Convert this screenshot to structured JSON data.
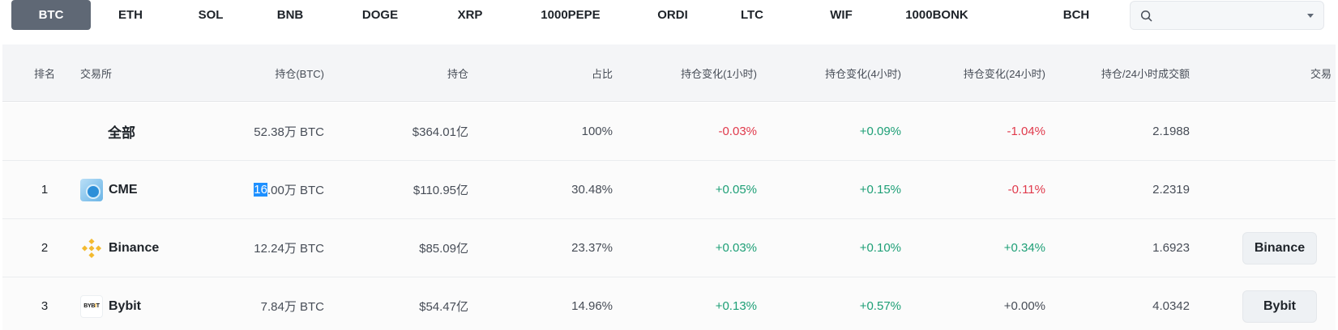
{
  "tabs": [
    {
      "label": "BTC",
      "active": true
    },
    {
      "label": "ETH"
    },
    {
      "label": "SOL"
    },
    {
      "label": "BNB"
    },
    {
      "label": "DOGE"
    },
    {
      "label": "XRP"
    },
    {
      "label": "1000PEPE"
    },
    {
      "label": "ORDI"
    },
    {
      "label": "LTC"
    },
    {
      "label": "WIF"
    },
    {
      "label": "1000BONK"
    },
    {
      "label": "BCH"
    }
  ],
  "search": {
    "value": "",
    "placeholder": ""
  },
  "table": {
    "headers": {
      "rank": "排名",
      "exchange": "交易所",
      "holding": "持仓(BTC)",
      "value": "持仓",
      "share": "占比",
      "change_1h": "持仓变化(1小时)",
      "change_4h": "持仓变化(4小时)",
      "change_24h": "持仓变化(24小时)",
      "ratio": "持仓/24小时成交额",
      "trade": "交易"
    },
    "total": {
      "name": "全部",
      "holding": "52.38万 BTC",
      "value": "$364.01亿",
      "share": "100%",
      "change_1h": "-0.03%",
      "change_4h": "+0.09%",
      "change_24h": "-1.04%",
      "ratio": "2.1988"
    },
    "rows": [
      {
        "rank": "1",
        "name": "CME",
        "holding_sel": "16",
        "holding_rest": ".00万 BTC",
        "value": "$110.95亿",
        "share": "30.48%",
        "change_1h": "+0.05%",
        "change_4h": "+0.15%",
        "change_24h": "-0.11%",
        "ratio": "2.2319",
        "trade": ""
      },
      {
        "rank": "2",
        "name": "Binance",
        "holding": "12.24万 BTC",
        "value": "$85.09亿",
        "share": "23.37%",
        "change_1h": "+0.03%",
        "change_4h": "+0.10%",
        "change_24h": "+0.34%",
        "ratio": "1.6923",
        "trade": "Binance"
      },
      {
        "rank": "3",
        "name": "Bybit",
        "logo_text_a": "BYB",
        "logo_text_b": "I",
        "logo_text_c": "T",
        "holding": "7.84万 BTC",
        "value": "$54.47亿",
        "share": "14.96%",
        "change_1h": "+0.13%",
        "change_4h": "+0.57%",
        "change_24h": "+0.00%",
        "ratio": "4.0342",
        "trade": "Bybit"
      }
    ]
  },
  "colors": {
    "positive": "#1d9f76",
    "negative": "#e0394b",
    "active_tab": "#5f6875",
    "selection": "#1e90ff"
  }
}
